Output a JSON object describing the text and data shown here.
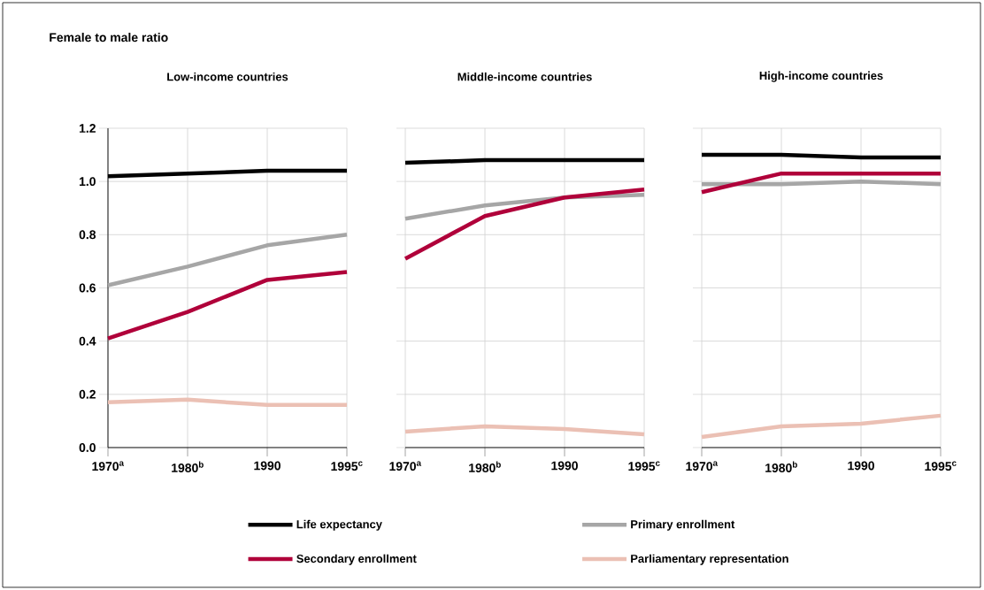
{
  "chart_data": [
    {
      "type": "line",
      "title": "Low-income countries",
      "ylabel": "Female to male ratio",
      "categories": [
        "1970$^{a}$",
        "1980$^{b}$",
        "1990",
        "1995$^{c}$"
      ],
      "ylim": [
        0,
        1.2
      ],
      "yticks": [
        {
          "value": 0,
          "label": "0.0"
        },
        0.2,
        0.4,
        0.6,
        0.8,
        {
          "value": 1,
          "label": "1.0"
        },
        1.2
      ],
      "grid": true,
      "legend": "bottom",
      "marker": "none",
      "line_style": "solid",
      "series": [
        {
          "name": "Life expectancy",
          "color": "#000000",
          "values": [
            1.02,
            1.03,
            1.04,
            1.04
          ]
        },
        {
          "name": "Primary enrollment",
          "color": "#a6a6a6",
          "values": [
            0.61,
            0.68,
            0.76,
            0.8
          ]
        },
        {
          "name": "Secondary enrollment",
          "color": "#b0003a",
          "values": [
            0.41,
            0.51,
            0.63,
            0.66
          ]
        },
        {
          "name": "Parliamentary representation",
          "color": "#ebc0b4",
          "values": [
            0.17,
            0.18,
            0.16,
            0.16
          ]
        }
      ]
    },
    {
      "type": "line",
      "title": "Middle-income countries",
      "categories": [
        "1970$^{a}$",
        "1980$^{b}$",
        "1990",
        "1995$^{c}$"
      ],
      "ylim": [
        0,
        1.2
      ],
      "yticks": [
        0,
        0.2,
        0.4,
        0.6,
        0.8,
        1,
        1.2
      ],
      "grid": true,
      "tick_labels": "x",
      "marker": "none",
      "line_style": "solid",
      "series": [
        {
          "color": "#000000",
          "values": [
            1.07,
            1.08,
            1.08,
            1.08
          ]
        },
        {
          "color": "#a6a6a6",
          "values": [
            0.86,
            0.91,
            0.94,
            0.95
          ]
        },
        {
          "color": "#b0003a",
          "values": [
            0.71,
            0.87,
            0.94,
            0.97
          ]
        },
        {
          "color": "#ebc0b4",
          "values": [
            0.06,
            0.08,
            0.07,
            0.05
          ]
        }
      ]
    },
    {
      "type": "line",
      "title": "High-income countries",
      "categories": [
        "1970$^{a}$",
        "1980$^{b}$",
        "1990",
        "1995$^{c}$"
      ],
      "ylim": [
        0,
        1.2
      ],
      "yticks": [
        0,
        0.2,
        0.4,
        0.6,
        0.8,
        1,
        1.2
      ],
      "grid": true,
      "tick_labels": "x",
      "marker": "none",
      "line_style": "solid",
      "series": [
        {
          "color": "#000000",
          "values": [
            1.1,
            1.1,
            1.09,
            1.09
          ]
        },
        {
          "color": "#a6a6a6",
          "values": [
            0.99,
            0.99,
            1.0,
            0.99
          ]
        },
        {
          "color": "#b0003a",
          "values": [
            0.96,
            1.03,
            1.03,
            1.03
          ]
        },
        {
          "color": "#ebc0b4",
          "values": [
            0.04,
            0.08,
            0.09,
            0.12
          ]
        }
      ]
    }
  ]
}
